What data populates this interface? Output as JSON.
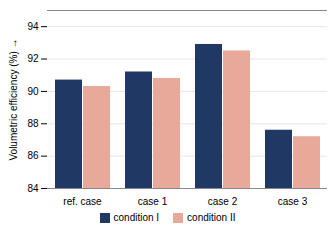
{
  "chart_data": {
    "type": "bar",
    "categories": [
      "ref. case",
      "case 1",
      "case 2",
      "case 3"
    ],
    "series": [
      {
        "name": "condition I",
        "color": "#1F3864",
        "values": [
          90.7,
          91.2,
          92.9,
          87.6
        ]
      },
      {
        "name": "condition II",
        "color": "#E8A99A",
        "values": [
          90.3,
          90.8,
          92.5,
          87.2
        ]
      }
    ],
    "ylabel": "Volumetric efficiency (%)",
    "ylim": [
      84,
      95
    ],
    "yticks": [
      84,
      86,
      88,
      90,
      92,
      94
    ],
    "grid": true,
    "legend": "bottom"
  }
}
